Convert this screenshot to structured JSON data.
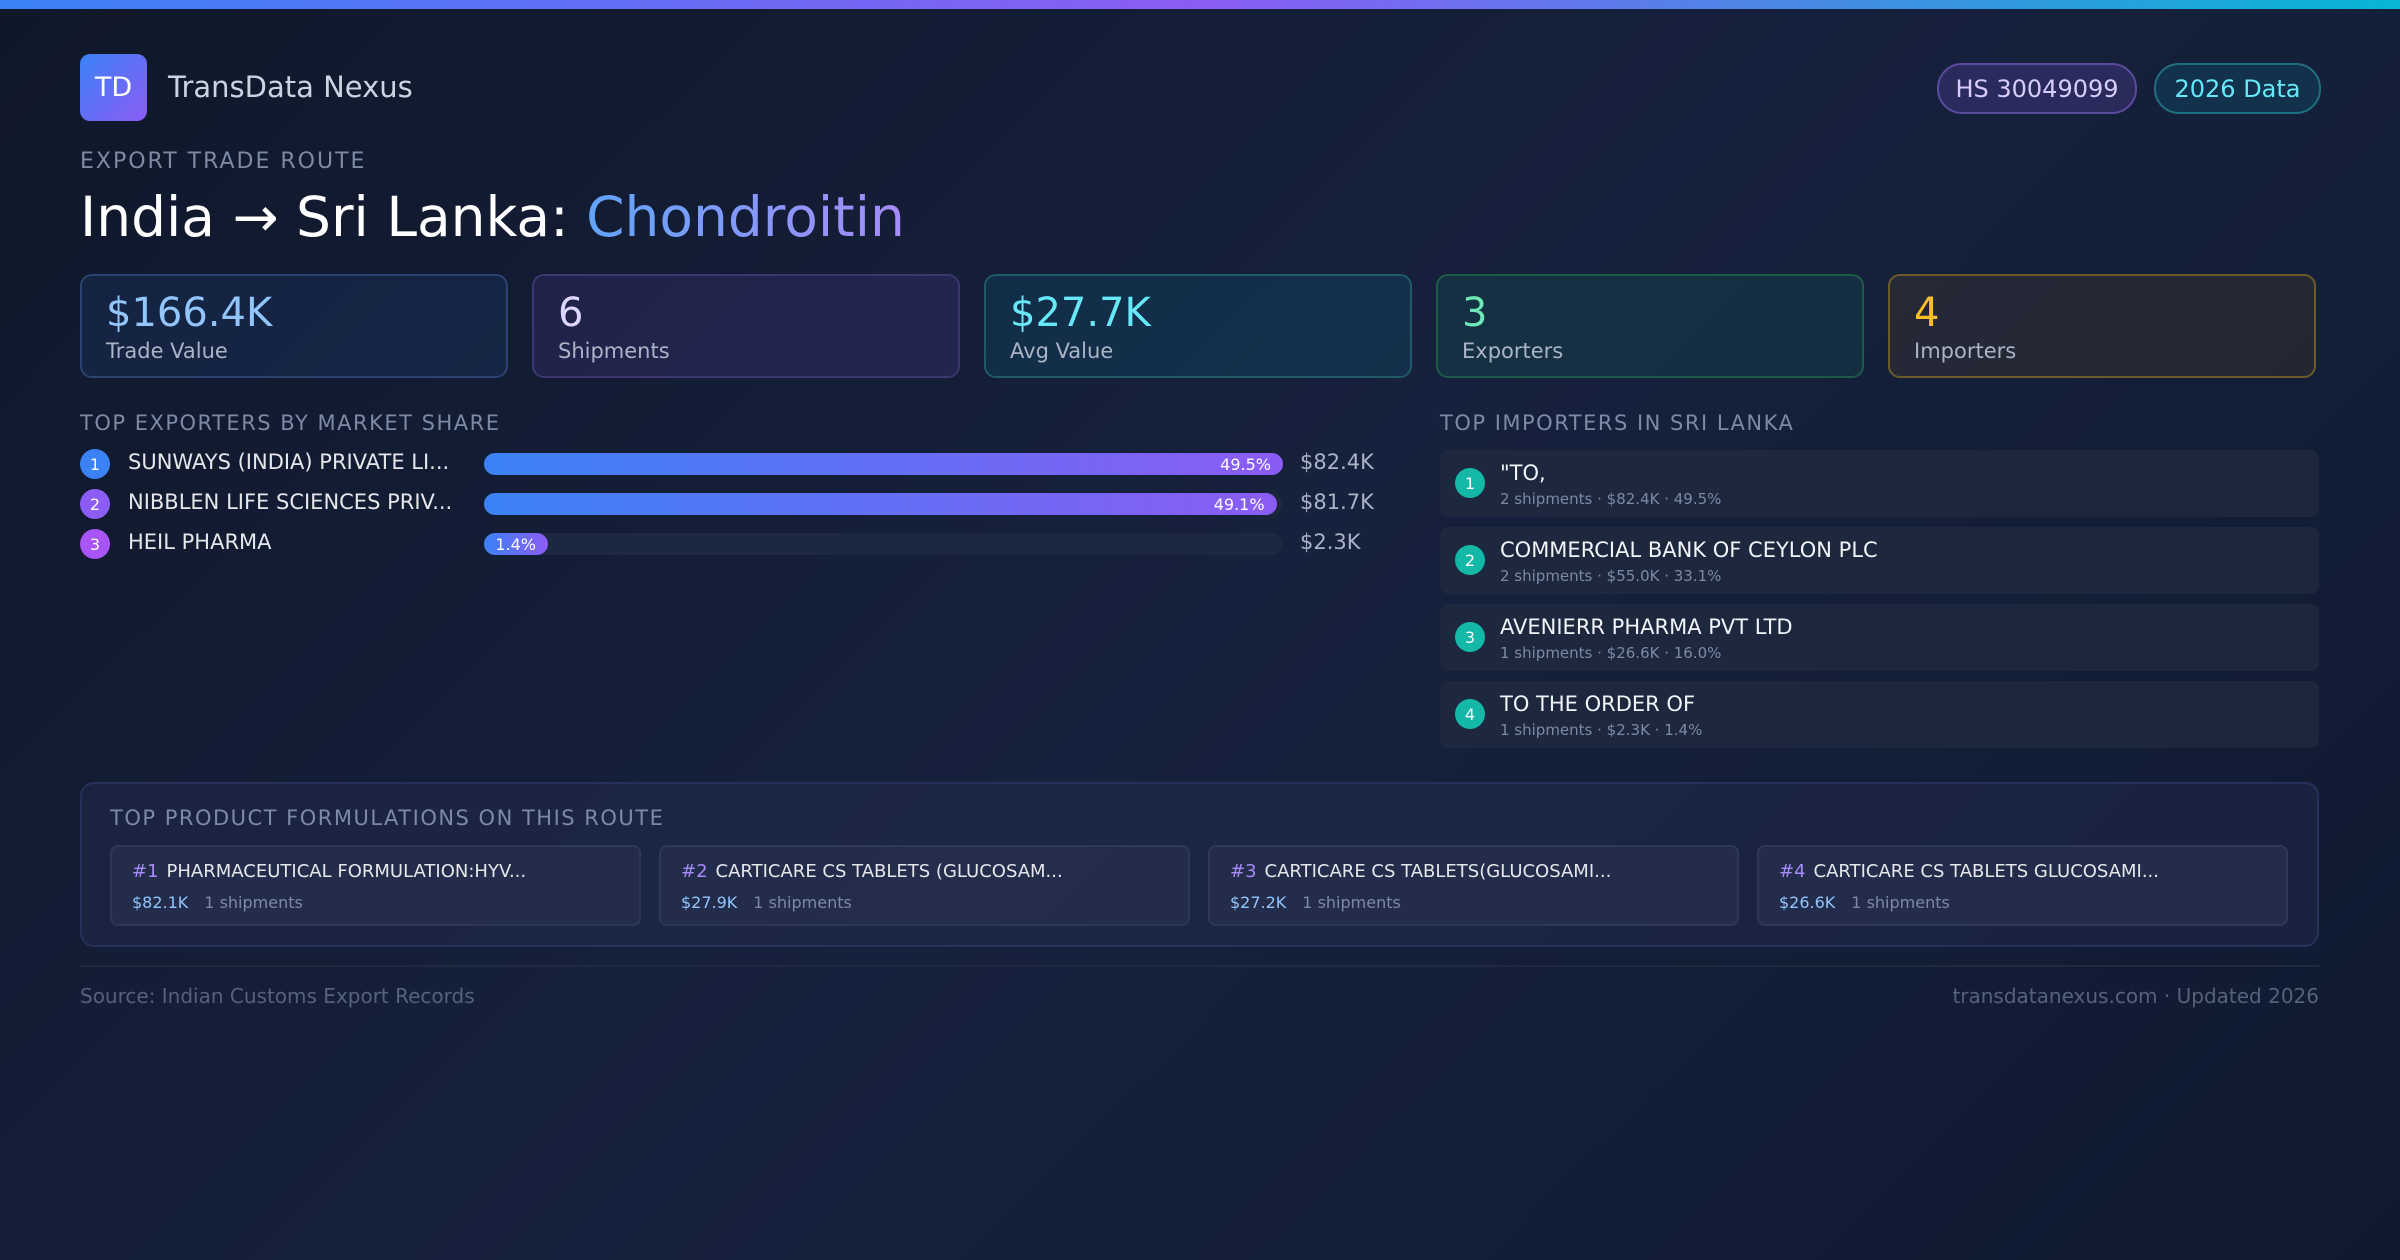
{
  "header": {
    "logo": "TD",
    "brand": "TransData Nexus",
    "badges": [
      "HS 30049099",
      "2026 Data"
    ]
  },
  "route": {
    "eyebrow": "EXPORT TRADE ROUTE",
    "title": "India → Sri Lanka:",
    "product": "Chondroitin"
  },
  "stats": [
    {
      "value": "$166.4K",
      "label": "Trade Value"
    },
    {
      "value": "6",
      "label": "Shipments"
    },
    {
      "value": "$27.7K",
      "label": "Avg Value"
    },
    {
      "value": "3",
      "label": "Exporters"
    },
    {
      "value": "4",
      "label": "Importers"
    }
  ],
  "exporters": {
    "title": "TOP EXPORTERS BY MARKET SHARE",
    "rows": [
      {
        "rank": 1,
        "name": "SUNWAYS (INDIA) PRIVATE LI...",
        "share": 49.5,
        "share_label": "49.5%",
        "value": "$82.4K"
      },
      {
        "rank": 2,
        "name": "NIBBLEN LIFE SCIENCES PRIV...",
        "share": 49.1,
        "share_label": "49.1%",
        "value": "$81.7K"
      },
      {
        "rank": 3,
        "name": "HEIL PHARMA",
        "share": 1.4,
        "share_label": "1.4%",
        "value": "$2.3K"
      }
    ]
  },
  "importers": {
    "title": "TOP IMPORTERS IN SRI LANKA",
    "rows": [
      {
        "rank": 1,
        "name": "\"TO,",
        "detail": "2 shipments · $82.4K · 49.5%"
      },
      {
        "rank": 2,
        "name": "COMMERCIAL BANK OF CEYLON PLC",
        "detail": "2 shipments · $55.0K · 33.1%"
      },
      {
        "rank": 3,
        "name": "AVENIERR PHARMA PVT LTD",
        "detail": "1 shipments · $26.6K · 16.0%"
      },
      {
        "rank": 4,
        "name": "TO THE ORDER OF",
        "detail": "1 shipments · $2.3K · 1.4%"
      }
    ]
  },
  "formulations": {
    "title": "TOP PRODUCT FORMULATIONS ON THIS ROUTE",
    "items": [
      {
        "rank": "#1",
        "name": "PHARMACEUTICAL FORMULATION:HYV...",
        "value": "$82.1K",
        "shipments": "1 shipments"
      },
      {
        "rank": "#2",
        "name": "CARTICARE CS TABLETS (GLUCOSAM...",
        "value": "$27.9K",
        "shipments": "1 shipments"
      },
      {
        "rank": "#3",
        "name": "CARTICARE CS TABLETS(GLUCOSAMI...",
        "value": "$27.2K",
        "shipments": "1 shipments"
      },
      {
        "rank": "#4",
        "name": "CARTICARE CS TABLETS GLUCOSAMI...",
        "value": "$26.6K",
        "shipments": "1 shipments"
      }
    ]
  },
  "footer": {
    "source": "Source: Indian Customs Export Records",
    "credit": "transdatanexus.com · Updated 2026"
  }
}
